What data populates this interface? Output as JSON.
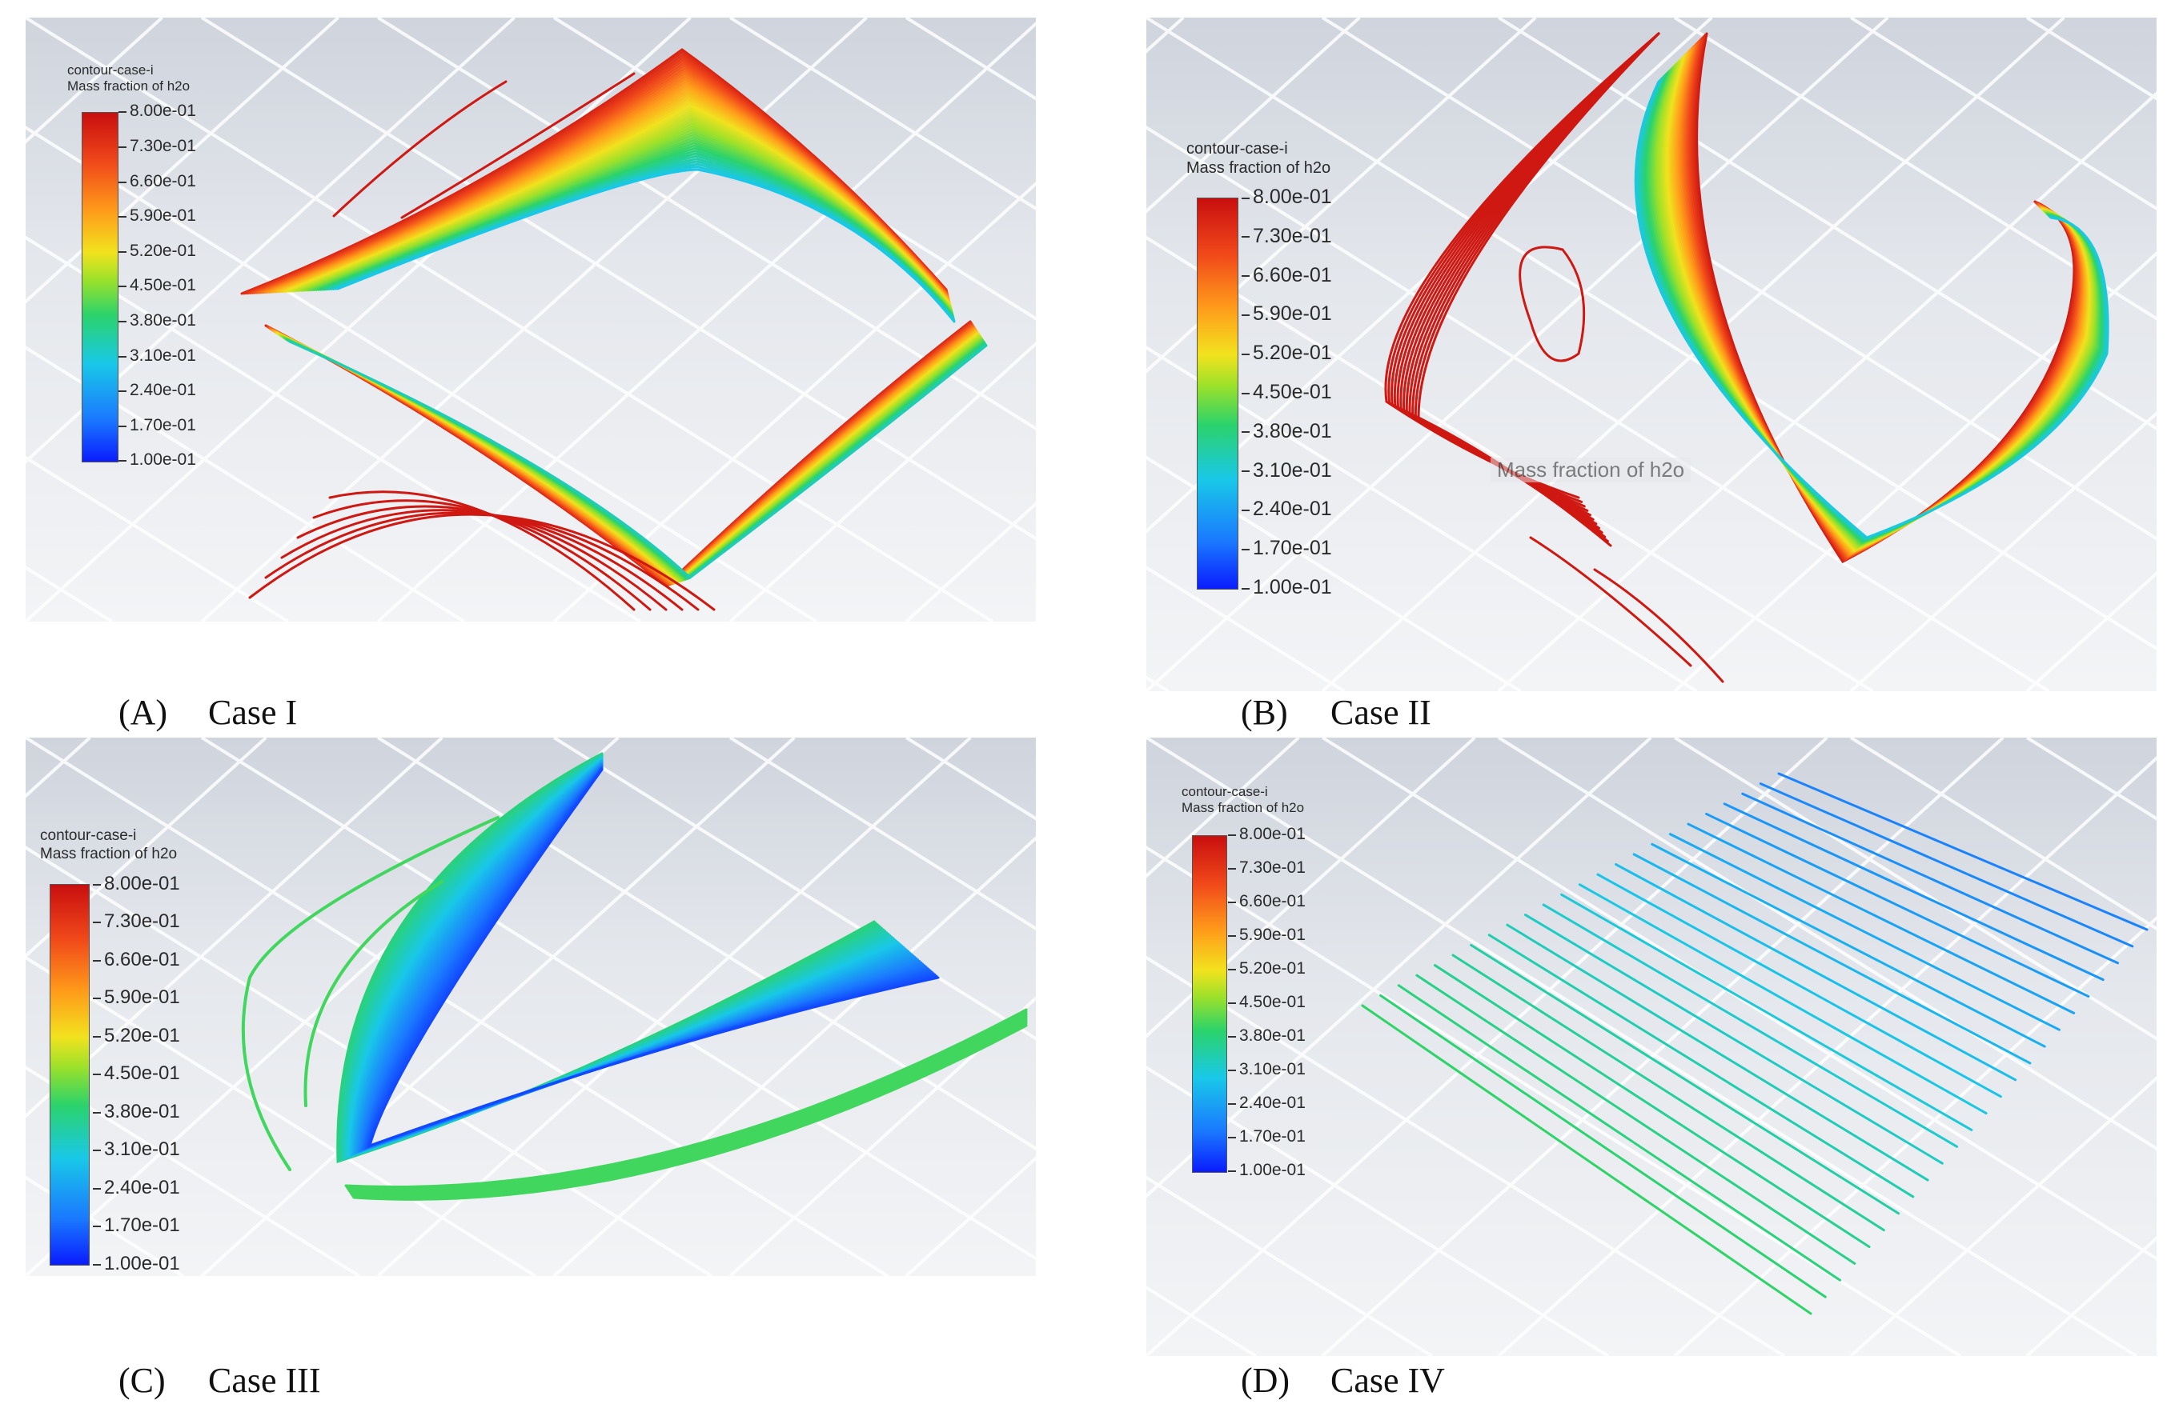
{
  "legend": {
    "line1": "contour-case-i",
    "line2": "Mass fraction of h2o",
    "ticks": [
      "8.00e-01",
      "7.30e-01",
      "6.60e-01",
      "5.90e-01",
      "5.20e-01",
      "4.50e-01",
      "3.80e-01",
      "3.10e-01",
      "2.40e-01",
      "1.70e-01",
      "1.00e-01"
    ],
    "colormap": [
      "#0a1cff",
      "#1a78ff",
      "#19c8e8",
      "#2bd36b",
      "#9be12a",
      "#f2e21e",
      "#ff9b1a",
      "#f0471a",
      "#c80f0f"
    ]
  },
  "panels": [
    {
      "label": "(A)",
      "case": "Case I"
    },
    {
      "label": "(B)",
      "case": "Case II",
      "overlay": "Mass fraction of h2o"
    },
    {
      "label": "(C)",
      "case": "Case III"
    },
    {
      "label": "(D)",
      "case": "Case IV"
    }
  ]
}
